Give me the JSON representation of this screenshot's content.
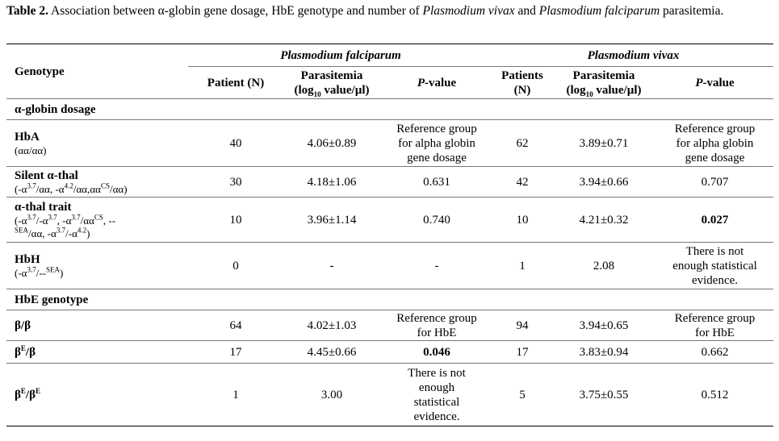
{
  "caption": {
    "label": "Table 2.",
    "text_1": "Association between α-globin gene dosage, HbE genotype and number of",
    "italic_1": "Plasmodium vivax",
    "text_2": "and",
    "italic_2": "Plasmodium falciparum",
    "text_3": "parasitemia."
  },
  "header": {
    "genotype": "Genotype",
    "pf": "Plasmodium falciparum",
    "pv": "Plasmodium vivax",
    "pf_patients": "Patient (N)",
    "pf_parasitemia_1": "Parasitemia",
    "pf_parasitemia_2": "(log",
    "pf_parasitemia_sub": "10",
    "pf_parasitemia_3": " value/µl)",
    "pf_pvalue_italic": "P",
    "pf_pvalue_rest": "-value",
    "pv_patients_1": "Patients",
    "pv_patients_2": "(N)",
    "pv_parasitemia_1": "Parasitemia",
    "pv_parasitemia_2": "(log",
    "pv_parasitemia_sub": "10",
    "pv_parasitemia_3": " value/µl)",
    "pv_pvalue_italic": "P",
    "pv_pvalue_rest": "-value"
  },
  "sections": {
    "alpha": "α-globin dosage",
    "hbe": "HbE genotype"
  },
  "rows": {
    "hba": {
      "name": "HbA",
      "sub": "(αα/αα)",
      "pf_n": "40",
      "pf_par": "4.06±0.89",
      "pf_p": [
        "Reference group",
        "for alpha globin",
        "gene dosage"
      ],
      "pv_n": "62",
      "pv_par": "3.89±0.71",
      "pv_p": [
        "Reference group",
        "for alpha globin",
        "gene dosage"
      ]
    },
    "silent": {
      "name": "Silent α-thal",
      "pf_n": "30",
      "pf_par": "4.18±1.06",
      "pf_p": "0.631",
      "pv_n": "42",
      "pv_par": "3.94±0.66",
      "pv_p": "0.707"
    },
    "trait": {
      "name": "α-thal trait",
      "pf_n": "10",
      "pf_par": "3.96±1.14",
      "pf_p": "0.740",
      "pv_n": "10",
      "pv_par": "4.21±0.32",
      "pv_p": "0.027"
    },
    "hbh": {
      "name": "HbH",
      "pf_n": "0",
      "pf_par": "-",
      "pf_p": "-",
      "pv_n": "1",
      "pv_par": "2.08",
      "pv_p": [
        "There is not",
        "enough statistical",
        "evidence."
      ]
    },
    "bb": {
      "pf_n": "64",
      "pf_par": "4.02±1.03",
      "pf_p": [
        "Reference group",
        "for HbE"
      ],
      "pv_n": "94",
      "pv_par": "3.94±0.65",
      "pv_p": [
        "Reference group",
        "for HbE"
      ]
    },
    "ebb": {
      "pf_n": "17",
      "pf_par": "4.45±0.66",
      "pf_p": "0.046",
      "pv_n": "17",
      "pv_par": "3.83±0.94",
      "pv_p": "0.662"
    },
    "ebeb": {
      "pf_n": "1",
      "pf_par": "3.00",
      "pf_p": [
        "There is not",
        "enough",
        "statistical",
        "evidence."
      ],
      "pv_n": "5",
      "pv_par": "3.75±0.55",
      "pv_p": "0.512"
    }
  }
}
